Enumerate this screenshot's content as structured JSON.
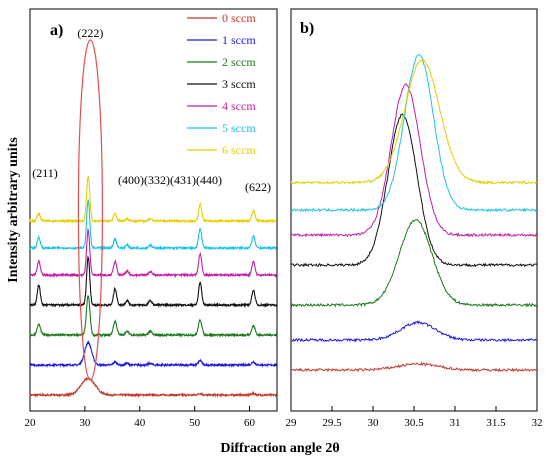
{
  "figure": {
    "ylabel": "Intensity arbitrary units",
    "xlabel": "Diffraction angle 2θ"
  },
  "chart_data": [
    {
      "type": "line",
      "panel_label": "a)",
      "xlim": [
        20,
        65
      ],
      "x_ticks": [
        20,
        30,
        40,
        50,
        60
      ],
      "y_ticks_shown": false,
      "grid": false,
      "legend": "top-right",
      "annotations": [
        "(222)",
        "(211)",
        "(400)(332)(431)(440)",
        "(622)"
      ],
      "highlight": {
        "shape": "ellipse",
        "x_center": 31,
        "label": "(222)"
      },
      "peaks": [
        {
          "label": "(211)",
          "x": 21.6
        },
        {
          "label": "(222)",
          "x": 30.6
        },
        {
          "label": "(400)",
          "x": 35.5
        },
        {
          "label": "(332)",
          "x": 37.7
        },
        {
          "label": "(431)",
          "x": 41.9
        },
        {
          "label": "(440)",
          "x": 51.0
        },
        {
          "label": "(622)",
          "x": 60.7
        }
      ],
      "series": [
        {
          "name": "0 sccm",
          "color": "#c0392b",
          "offset": 0.0,
          "peak_heights": [
            0,
            0.55,
            0,
            0,
            0,
            0.05,
            0.05
          ],
          "peak_width": 1.8
        },
        {
          "name": "1 sccm",
          "color": "#1a1adb",
          "offset": 1.0,
          "peak_heights": [
            0,
            0.75,
            0.1,
            0.05,
            0.05,
            0.15,
            0.1
          ],
          "peak_width": 0.9
        },
        {
          "name": "2 sccm",
          "color": "#1a7a1a",
          "offset": 2.0,
          "peak_heights": [
            0.35,
            1.3,
            0.45,
            0.12,
            0.12,
            0.5,
            0.3
          ],
          "peak_width": 0.45
        },
        {
          "name": "3 sccm",
          "color": "#111111",
          "offset": 3.0,
          "peak_heights": [
            0.65,
            1.6,
            0.55,
            0.15,
            0.15,
            0.75,
            0.5
          ],
          "peak_width": 0.4
        },
        {
          "name": "4 sccm",
          "color": "#c21ea6",
          "offset": 4.0,
          "peak_heights": [
            0.45,
            1.5,
            0.45,
            0.12,
            0.12,
            0.7,
            0.45
          ],
          "peak_width": 0.4
        },
        {
          "name": "5 sccm",
          "color": "#1ec3e6",
          "offset": 4.9,
          "peak_heights": [
            0.35,
            1.6,
            0.3,
            0.1,
            0.1,
            0.65,
            0.4
          ],
          "peak_width": 0.4
        },
        {
          "name": "6 sccm",
          "color": "#e3d000",
          "offset": 5.8,
          "peak_heights": [
            0.25,
            1.5,
            0.25,
            0.08,
            0.08,
            0.55,
            0.35
          ],
          "peak_width": 0.4
        }
      ]
    },
    {
      "type": "line",
      "panel_label": "b)",
      "xlim": [
        29,
        32
      ],
      "x_ticks": [
        29,
        29.5,
        30,
        30.5,
        31,
        31.5,
        32
      ],
      "y_ticks_shown": false,
      "grid": false,
      "series": [
        {
          "name": "0 sccm",
          "color": "#c0392b",
          "base": 0.0,
          "peak_x": 30.55,
          "height": 0.12,
          "width": 0.35
        },
        {
          "name": "1 sccm",
          "color": "#1a1adb",
          "base": 0.6,
          "peak_x": 30.55,
          "height": 0.35,
          "width": 0.3
        },
        {
          "name": "2 sccm",
          "color": "#1a7a1a",
          "base": 1.3,
          "peak_x": 30.52,
          "height": 1.7,
          "width": 0.28
        },
        {
          "name": "3 sccm",
          "color": "#111111",
          "base": 2.1,
          "peak_x": 30.36,
          "height": 3.0,
          "width": 0.25
        },
        {
          "name": "4 sccm",
          "color": "#c21ea6",
          "base": 2.7,
          "peak_x": 30.4,
          "height": 3.0,
          "width": 0.25
        },
        {
          "name": "5 sccm",
          "color": "#1ec3e6",
          "base": 3.2,
          "peak_x": 30.56,
          "height": 3.1,
          "width": 0.25
        },
        {
          "name": "6 sccm",
          "color": "#e3d000",
          "base": 3.75,
          "peak_x": 30.6,
          "height": 2.45,
          "width": 0.3
        }
      ]
    }
  ]
}
